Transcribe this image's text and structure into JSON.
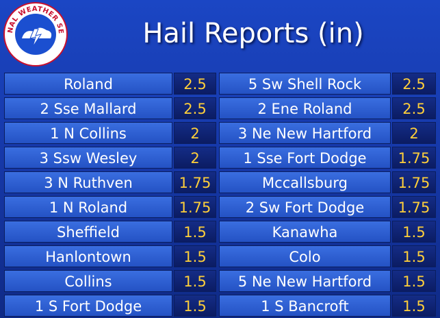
{
  "header": {
    "title": "Hail Reports (in)",
    "logo_text": "NATIONAL WEATHER SERVICE"
  },
  "table": {
    "left": [
      [
        "Roland",
        2.5
      ],
      [
        "2 Sse Mallard",
        2.5
      ],
      [
        "1 N Collins",
        2
      ],
      [
        "3 Ssw Wesley",
        2
      ],
      [
        "3 N Ruthven",
        1.75
      ],
      [
        "1 N Roland",
        1.75
      ],
      [
        "Sheffield",
        1.5
      ],
      [
        "Hanlontown",
        1.5
      ],
      [
        "Collins",
        1.5
      ],
      [
        "1 S Fort Dodge",
        1.5
      ]
    ],
    "right": [
      [
        "5 Sw Shell Rock",
        2.5
      ],
      [
        "2 Ene Roland",
        2.5
      ],
      [
        "3 Ne New Hartford",
        2
      ],
      [
        "1 Sse Fort Dodge",
        1.75
      ],
      [
        "Mccallsburg",
        1.75
      ],
      [
        "2 Sw Fort Dodge",
        1.75
      ],
      [
        "Kanawha",
        1.5
      ],
      [
        "Colo",
        1.5
      ],
      [
        "5 Ne New Hartford",
        1.5
      ],
      [
        "1 S Bancroft",
        1.5
      ]
    ]
  }
}
